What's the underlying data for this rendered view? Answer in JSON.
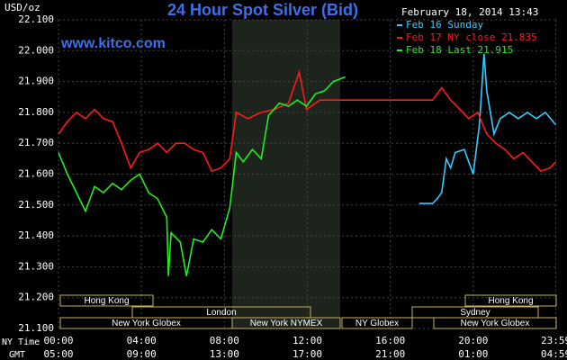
{
  "chart_data": {
    "type": "line",
    "title": "24 Hour Spot Silver (Bid)",
    "y_unit": "USD/oz",
    "timestamp": "February 18, 2014 13:43",
    "watermark": "www.kitco.com",
    "x_label": "NY Time",
    "x2_label": "GMT",
    "xlim": [
      0,
      24
    ],
    "xticks": [
      {
        "value": 0,
        "label": "00:00"
      },
      {
        "value": 4,
        "label": "04:00"
      },
      {
        "value": 8,
        "label": "08:00"
      },
      {
        "value": 12,
        "label": "12:00"
      },
      {
        "value": 16,
        "label": "16:00"
      },
      {
        "value": 20,
        "label": "20:00"
      },
      {
        "value": 23.983,
        "label": "23:59"
      }
    ],
    "x2ticks": [
      {
        "value": 0,
        "label": "05:00"
      },
      {
        "value": 4,
        "label": "09:00"
      },
      {
        "value": 8,
        "label": "13:00"
      },
      {
        "value": 12,
        "label": "17:00"
      },
      {
        "value": 16,
        "label": "21:00"
      },
      {
        "value": 20,
        "label": "01:00"
      },
      {
        "value": 23.983,
        "label": "04:59"
      }
    ],
    "ylim": [
      21.1,
      22.1
    ],
    "yticks": [
      {
        "value": 21.1,
        "label": "21.100"
      },
      {
        "value": 21.2,
        "label": "21.200"
      },
      {
        "value": 21.3,
        "label": "21.300"
      },
      {
        "value": 21.4,
        "label": "21.400"
      },
      {
        "value": 21.5,
        "label": "21.500"
      },
      {
        "value": 21.6,
        "label": "21.600"
      },
      {
        "value": 21.7,
        "label": "21.700"
      },
      {
        "value": 21.8,
        "label": "21.800"
      },
      {
        "value": 21.9,
        "label": "21.900"
      },
      {
        "value": 22.0,
        "label": "22.000"
      },
      {
        "value": 22.1,
        "label": "22.100"
      }
    ],
    "grid": true,
    "sessions": [
      "Hong Kong",
      "London",
      "New York Globex",
      "New York NYMEX",
      "NY Globex",
      "Sydney",
      "Hong Kong",
      "New York Globex"
    ],
    "series": [
      {
        "name": "Feb 16 Sunday",
        "color": "#33ccff",
        "x": [
          17.39,
          18.04,
          18.26,
          18.48,
          18.7,
          18.91,
          19.13,
          19.57,
          19.78,
          20,
          20.3,
          20.52,
          20.65,
          21,
          21.3,
          21.74,
          22.17,
          22.61,
          23.04,
          23.48,
          23.98
        ],
        "values": [
          21.505,
          21.505,
          21.52,
          21.54,
          21.65,
          21.62,
          21.67,
          21.68,
          21.64,
          21.6,
          21.76,
          21.99,
          21.87,
          21.73,
          21.78,
          21.8,
          21.78,
          21.8,
          21.78,
          21.8,
          21.76
        ]
      },
      {
        "name": "Feb 17 NY close 21.835",
        "color": "#ff1a1a",
        "x": [
          0,
          0.43,
          0.87,
          1.3,
          1.74,
          2.17,
          2.61,
          3.04,
          3.48,
          3.91,
          4.35,
          4.78,
          5.22,
          5.65,
          6.09,
          6.52,
          6.96,
          7.39,
          7.83,
          8.26,
          8.57,
          9.13,
          9.78,
          10.43,
          11.09,
          11.61,
          11.96,
          12.61,
          13.26,
          13.7,
          18.04,
          18.48,
          18.91,
          19.35,
          19.78,
          20.22,
          20.65,
          21.09,
          21.52,
          21.96,
          22.39,
          22.83,
          23.26,
          23.7,
          23.98
        ],
        "values": [
          21.73,
          21.77,
          21.8,
          21.78,
          21.81,
          21.78,
          21.77,
          21.7,
          21.62,
          21.67,
          21.68,
          21.7,
          21.67,
          21.7,
          21.7,
          21.68,
          21.67,
          21.61,
          21.62,
          21.65,
          21.8,
          21.78,
          21.8,
          21.81,
          21.83,
          21.93,
          21.81,
          21.84,
          21.84,
          21.84,
          21.84,
          21.88,
          21.84,
          21.81,
          21.78,
          21.8,
          21.73,
          21.7,
          21.68,
          21.65,
          21.67,
          21.64,
          21.61,
          21.62,
          21.64
        ]
      },
      {
        "name": "Feb 18 Last 21.915",
        "color": "#22ee22",
        "x": [
          0,
          0.43,
          0.87,
          1.3,
          1.74,
          2.17,
          2.61,
          3.04,
          3.48,
          3.91,
          4.35,
          4.78,
          5.22,
          5.3,
          5.43,
          5.87,
          6.17,
          6.52,
          6.96,
          7.39,
          7.83,
          8.26,
          8.57,
          8.91,
          9.35,
          9.78,
          10.13,
          10.65,
          11.09,
          11.52,
          11.96,
          12.39,
          12.83,
          13.26,
          13.83
        ],
        "values": [
          21.67,
          21.6,
          21.54,
          21.48,
          21.56,
          21.54,
          21.57,
          21.55,
          21.58,
          21.6,
          21.54,
          21.52,
          21.46,
          21.27,
          21.41,
          21.38,
          21.27,
          21.39,
          21.38,
          21.42,
          21.39,
          21.49,
          21.67,
          21.64,
          21.68,
          21.65,
          21.79,
          21.83,
          21.82,
          21.84,
          21.82,
          21.86,
          21.87,
          21.9,
          21.915
        ]
      }
    ]
  }
}
